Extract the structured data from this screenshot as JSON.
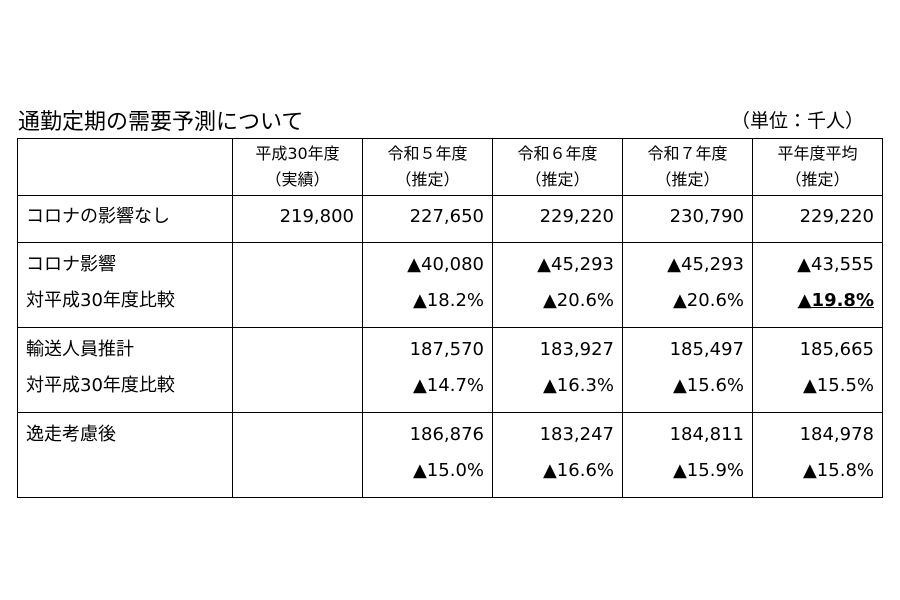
{
  "header": {
    "title": "通勤定期の需要予測について",
    "unit": "（単位：千人）"
  },
  "table": {
    "columns": [
      [
        "平成30年度",
        "（実績）"
      ],
      [
        "令和５年度",
        "（推定）"
      ],
      [
        "令和６年度",
        "（推定）"
      ],
      [
        "令和７年度",
        "（推定）"
      ],
      [
        "平年度平均",
        "（推定）"
      ]
    ],
    "rows": [
      {
        "label": [
          "コロナの影響なし"
        ],
        "cells": [
          [
            "219,800"
          ],
          [
            "227,650"
          ],
          [
            "229,220"
          ],
          [
            "230,790"
          ],
          [
            "229,220"
          ]
        ]
      },
      {
        "label": [
          "コロナ影響",
          "対平成30年度比較"
        ],
        "cells": [
          [],
          [
            "▲40,080",
            "▲18.2%"
          ],
          [
            "▲45,293",
            "▲20.6%"
          ],
          [
            "▲45,293",
            "▲20.6%"
          ],
          [
            "▲43,555",
            "▲19.8%"
          ]
        ]
      },
      {
        "label": [
          "輸送人員推計",
          "対平成30年度比較"
        ],
        "cells": [
          [],
          [
            "187,570",
            "▲14.7%"
          ],
          [
            "183,927",
            "▲16.3%"
          ],
          [
            "185,497",
            "▲15.6%"
          ],
          [
            "185,665",
            "▲15.5%"
          ]
        ]
      },
      {
        "label": [
          "逸走考慮後"
        ],
        "cells": [
          [],
          [
            "186,876",
            "▲15.0%"
          ],
          [
            "183,247",
            "▲16.6%"
          ],
          [
            "184,811",
            "▲15.9%"
          ],
          [
            "184,978",
            "▲15.8%"
          ]
        ]
      }
    ]
  }
}
